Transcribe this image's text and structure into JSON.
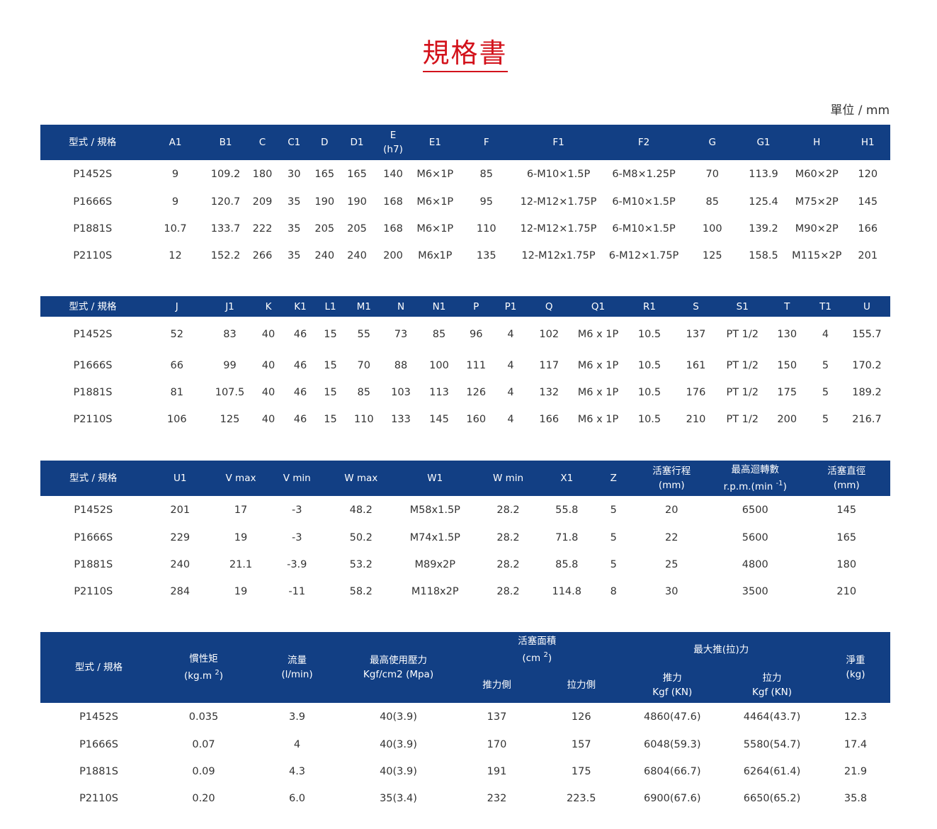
{
  "page": {
    "title": "規格書",
    "unit": "單位 / mm"
  },
  "colors": {
    "header_bg": "#123f84",
    "title": "#d3121b"
  },
  "tables": [
    {
      "headers": [
        {
          "l1": "型式 / 規格"
        },
        {
          "l1": "A1"
        },
        {
          "l1": "B1"
        },
        {
          "l1": "C"
        },
        {
          "l1": "C1"
        },
        {
          "l1": "D"
        },
        {
          "l1": "D1"
        },
        {
          "l1": "E",
          "l2": "(h7)"
        },
        {
          "l1": "E1"
        },
        {
          "l1": "F"
        },
        {
          "l1": "F1"
        },
        {
          "l1": "F2"
        },
        {
          "l1": "G"
        },
        {
          "l1": "G1"
        },
        {
          "l1": "H"
        },
        {
          "l1": "H1"
        }
      ],
      "rows": [
        [
          "P1452S",
          "9",
          "109.2",
          "180",
          "30",
          "165",
          "165",
          "140",
          "M6×1P",
          "85",
          "6-M10×1.5P",
          "6-M8×1.25P",
          "70",
          "113.9",
          "M60×2P",
          "120"
        ],
        [
          "P1666S",
          "9",
          "120.7",
          "209",
          "35",
          "190",
          "190",
          "168",
          "M6×1P",
          "95",
          "12-M12×1.75P",
          "6-M10×1.5P",
          "85",
          "125.4",
          "M75×2P",
          "145"
        ],
        [
          "P1881S",
          "10.7",
          "133.7",
          "222",
          "35",
          "205",
          "205",
          "168",
          "M6×1P",
          "110",
          "12-M12×1.75P",
          "6-M10×1.5P",
          "100",
          "139.2",
          "M90×2P",
          "166"
        ],
        [
          "P2110S",
          "12",
          "152.2",
          "266",
          "35",
          "240",
          "240",
          "200",
          "M6x1P",
          "135",
          "12-M12x1.75P",
          "6-M12×1.75P",
          "125",
          "158.5",
          "M115×2P",
          "201"
        ]
      ]
    },
    {
      "headers": [
        {
          "l1": "型式 / 規格"
        },
        {
          "l1": "J"
        },
        {
          "l1": "J1"
        },
        {
          "l1": "K"
        },
        {
          "l1": "K1"
        },
        {
          "l1": "L1"
        },
        {
          "l1": "M1"
        },
        {
          "l1": "N"
        },
        {
          "l1": "N1"
        },
        {
          "l1": "P"
        },
        {
          "l1": "P1"
        },
        {
          "l1": "Q"
        },
        {
          "l1": "Q1"
        },
        {
          "l1": "R1"
        },
        {
          "l1": "S"
        },
        {
          "l1": "S1"
        },
        {
          "l1": "T"
        },
        {
          "l1": "T1"
        },
        {
          "l1": "U"
        }
      ],
      "rows": [
        [
          "P1452S",
          "52",
          "83",
          "40",
          "46",
          "15",
          "55",
          "73",
          "85",
          "96",
          "4",
          "102",
          "M6 x 1P",
          "10.5",
          "137",
          "PT 1/2",
          "130",
          "4",
          "155.7"
        ],
        [
          "P1666S",
          "66",
          "99",
          "40",
          "46",
          "15",
          "70",
          "88",
          "100",
          "111",
          "4",
          "117",
          "M6 x 1P",
          "10.5",
          "161",
          "PT 1/2",
          "150",
          "5",
          "170.2"
        ],
        [
          "P1881S",
          "81",
          "107.5",
          "40",
          "46",
          "15",
          "85",
          "103",
          "113",
          "126",
          "4",
          "132",
          "M6 x 1P",
          "10.5",
          "176",
          "PT 1/2",
          "175",
          "5",
          "189.2"
        ],
        [
          "P2110S",
          "106",
          "125",
          "40",
          "46",
          "15",
          "110",
          "133",
          "145",
          "160",
          "4",
          "166",
          "M6 x 1P",
          "10.5",
          "210",
          "PT 1/2",
          "200",
          "5",
          "216.7"
        ]
      ]
    },
    {
      "headers": [
        {
          "l1": "型式 / 規格"
        },
        {
          "l1": "U1"
        },
        {
          "l1": "V max"
        },
        {
          "l1": "V min"
        },
        {
          "l1": "W max"
        },
        {
          "l1": "W1"
        },
        {
          "l1": "W min"
        },
        {
          "l1": "X1"
        },
        {
          "l1": "Z"
        },
        {
          "l1": "活塞行程",
          "l2": "(mm)"
        },
        {
          "l1": "最高迴轉數",
          "l2": "r.p.m.(min ",
          "l2_sup": "-1",
          "l2_end": ")"
        },
        {
          "l1": "活塞直徑",
          "l2": "(mm)"
        }
      ],
      "rows": [
        [
          "P1452S",
          "201",
          "17",
          "-3",
          "48.2",
          "M58x1.5P",
          "28.2",
          "55.8",
          "5",
          "20",
          "6500",
          "145"
        ],
        [
          "P1666S",
          "229",
          "19",
          "-3",
          "50.2",
          "M74x1.5P",
          "28.2",
          "71.8",
          "5",
          "22",
          "5600",
          "165"
        ],
        [
          "P1881S",
          "240",
          "21.1",
          "-3.9",
          "53.2",
          "M89x2P",
          "28.2",
          "85.8",
          "5",
          "25",
          "4800",
          "180"
        ],
        [
          "P2110S",
          "284",
          "19",
          "-11",
          "58.2",
          "M118x2P",
          "28.2",
          "114.8",
          "8",
          "30",
          "3500",
          "210"
        ]
      ]
    },
    {
      "headers": {
        "model": "型式 / 規格",
        "inertia": {
          "l1": "慣性矩",
          "l2": "(kg.m ",
          "sup": "2",
          "end": ")"
        },
        "flow": {
          "l1": "流量",
          "l2": "(l/min)"
        },
        "pressure": {
          "l1": "最高使用壓力",
          "l2": "Kgf/cm2 (Mpa)"
        },
        "area": {
          "l1": "活塞面積",
          "l2": "(cm ",
          "sup": "2",
          "end": ")",
          "push": "推力側",
          "pull": "拉力側"
        },
        "force": {
          "l1": "最大推(拉)力",
          "push_l1": "推力",
          "push_l2": "Kgf (KN)",
          "pull_l1": "拉力",
          "pull_l2": "Kgf (KN)"
        },
        "weight": {
          "l1": "淨重",
          "l2": "(kg)"
        }
      },
      "rows": [
        [
          "P1452S",
          "0.035",
          "3.9",
          "40(3.9)",
          "137",
          "126",
          "4860(47.6)",
          "4464(43.7)",
          "12.3"
        ],
        [
          "P1666S",
          "0.07",
          "4",
          "40(3.9)",
          "170",
          "157",
          "6048(59.3)",
          "5580(54.7)",
          "17.4"
        ],
        [
          "P1881S",
          "0.09",
          "4.3",
          "40(3.9)",
          "191",
          "175",
          "6804(66.7)",
          "6264(61.4)",
          "21.9"
        ],
        [
          "P2110S",
          "0.20",
          "6.0",
          "35(3.4)",
          "232",
          "223.5",
          "6900(67.6)",
          "6650(65.2)",
          "35.8"
        ]
      ]
    }
  ]
}
